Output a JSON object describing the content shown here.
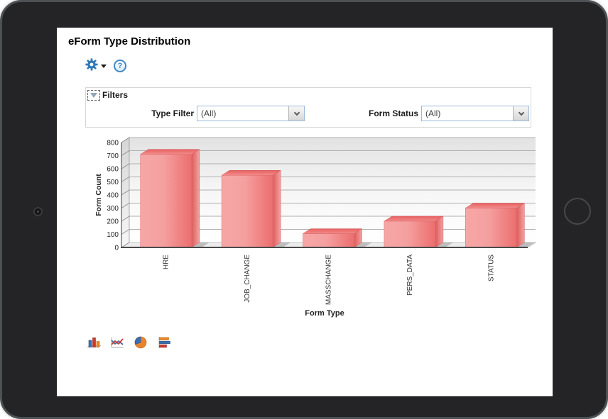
{
  "page": {
    "title": "eForm Type Distribution"
  },
  "toolbar": {
    "gear_icon": "gear-icon",
    "help_glyph": "?"
  },
  "filters": {
    "header_label": "Filters",
    "collapse_icon": "chevron-down-icon",
    "type_filter": {
      "label": "Type Filter",
      "value": "(All)"
    },
    "form_status": {
      "label": "Form Status",
      "value": "(All)"
    }
  },
  "chart_data": {
    "type": "bar",
    "style": "3d",
    "categories": [
      "HRE",
      "JOB_CHANGE",
      "MASSCHANGE",
      "PERS_DATA",
      "STATUS"
    ],
    "values": [
      710,
      550,
      105,
      200,
      300
    ],
    "xlabel": "Form Type",
    "ylabel": "Form Count",
    "ylim": [
      0,
      800
    ],
    "ytick_step": 100,
    "grid": true,
    "legend": "none",
    "bar_color": "#ee7b7b"
  },
  "chart_switcher": {
    "options": [
      "bar-chart-icon",
      "line-chart-icon",
      "pie-chart-icon",
      "horizontal-bar-chart-icon"
    ]
  },
  "colors": {
    "accent_blue": "#3279b7",
    "dropdown_border": "#9bb9da",
    "bar_front_light": "#f7adad",
    "bar_front_dark": "#ee7272"
  }
}
